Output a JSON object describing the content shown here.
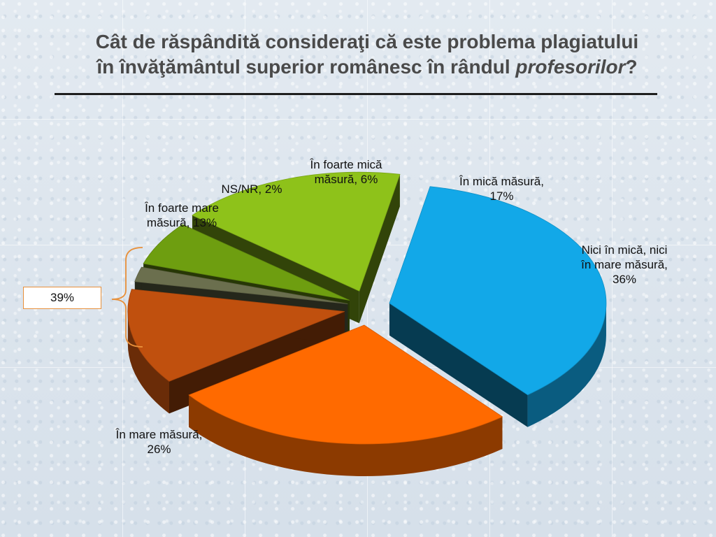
{
  "title": {
    "line1": "Cât de răspândită consideraţi că este problema plagiatului",
    "line2_prefix": "în învăţământul superior românesc în rândul ",
    "line2_emph": "profesorilor",
    "line2_suffix": "?"
  },
  "bracket": {
    "value": "39%"
  },
  "colors": {
    "in_foarte_mare": "#c0500e",
    "ns_nr": "#6b6f4e",
    "in_foarte_mica": "#6e9e10",
    "in_mica": "#8ec21a",
    "nici": "#12a8e8",
    "in_mare": "#ff6a00",
    "bracket": "#e8903a"
  },
  "chart_data": {
    "type": "pie",
    "title": "Cât de răspândită consideraţi că este problema plagiatului în învăţământul superior românesc în rândul profesorilor?",
    "slices": [
      {
        "label": "Nici în mică, nici în mare măsură",
        "value": 36,
        "display": "Nici în mică, nici\nîn mare măsură,\n36%"
      },
      {
        "label": "În mare măsură",
        "value": 26,
        "display": "În mare măsură,\n26%"
      },
      {
        "label": "În foarte mare măsură",
        "value": 13,
        "display": "În foarte mare\nmăsură, 13%"
      },
      {
        "label": "NS/NR",
        "value": 2,
        "display": "NS/NR, 2%"
      },
      {
        "label": "În foarte mică măsură",
        "value": 6,
        "display": "În foarte mică\nmăsură, 6%"
      },
      {
        "label": "În mică măsură",
        "value": 17,
        "display": "În mică măsură,\n17%"
      }
    ]
  }
}
